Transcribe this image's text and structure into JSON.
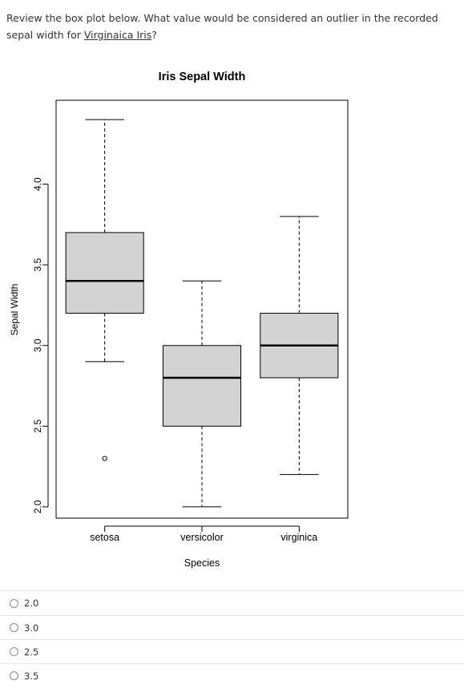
{
  "question": {
    "text_before": "Review the box plot below. What value would be considered an outlier in the recorded sepal width for ",
    "link_text": "Virginaica Iris",
    "text_after": "?"
  },
  "chart_data": {
    "type": "box",
    "title": "Iris Sepal Width",
    "xlabel": "Species",
    "ylabel": "Sepal Width",
    "categories": [
      "setosa",
      "versicolor",
      "virginica"
    ],
    "yticks": [
      "2.0",
      "2.5",
      "3.0",
      "3.5",
      "4.0"
    ],
    "ytick_values": [
      2.0,
      2.5,
      3.0,
      3.5,
      4.0
    ],
    "ylim": [
      1.93,
      4.52
    ],
    "boxes": [
      {
        "name": "setosa",
        "whisker_low": 2.9,
        "q1": 3.2,
        "median": 3.4,
        "q3": 3.7,
        "whisker_high": 4.4,
        "outliers": [
          2.3
        ]
      },
      {
        "name": "versicolor",
        "whisker_low": 2.0,
        "q1": 2.5,
        "median": 2.8,
        "q3": 3.0,
        "whisker_high": 3.4,
        "outliers": []
      },
      {
        "name": "virginica",
        "whisker_low": 2.2,
        "q1": 2.8,
        "median": 3.0,
        "q3": 3.2,
        "whisker_high": 3.8,
        "outliers": []
      }
    ],
    "box_fill": "#d3d3d3",
    "box_stroke": "#000000",
    "grid": false
  },
  "options": [
    {
      "label": "2.0"
    },
    {
      "label": "3.0"
    },
    {
      "label": "2.5"
    },
    {
      "label": "3.5"
    }
  ]
}
